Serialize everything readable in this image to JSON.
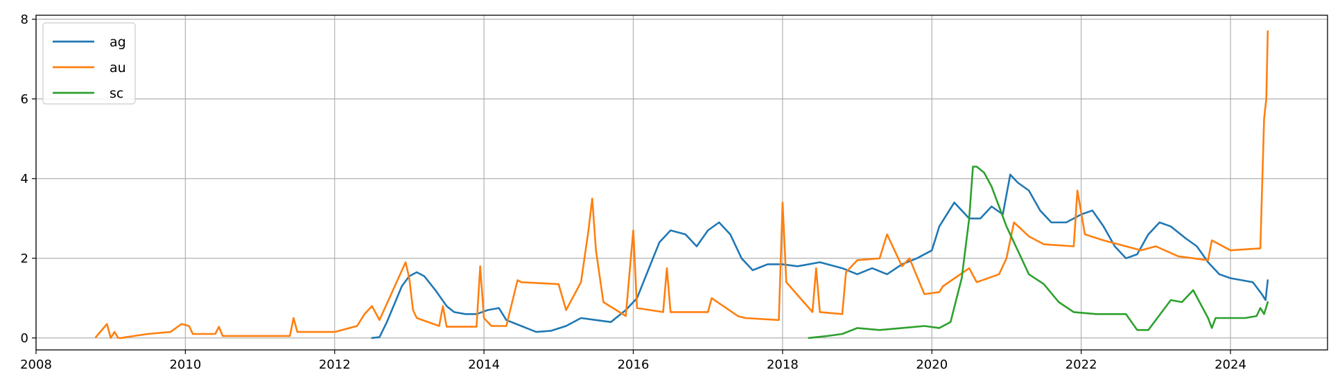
{
  "chart_data": {
    "type": "line",
    "title": "",
    "xlabel": "",
    "ylabel": "",
    "xlim": [
      2008.0,
      2025.3
    ],
    "ylim": [
      -0.3,
      8.1
    ],
    "x_ticks": [
      2008,
      2010,
      2012,
      2014,
      2016,
      2018,
      2020,
      2022,
      2024
    ],
    "x_tick_labels": [
      "2008",
      "2010",
      "2012",
      "2014",
      "2016",
      "2018",
      "2020",
      "2022",
      "2024"
    ],
    "y_ticks": [
      0,
      2,
      4,
      6,
      8
    ],
    "y_tick_labels": [
      "0",
      "2",
      "4",
      "6",
      "8"
    ],
    "grid": true,
    "legend_position": "top-left",
    "series": [
      {
        "name": "ag",
        "color": "#1f77b4",
        "x": [
          2012.5,
          2012.6,
          2012.7,
          2012.8,
          2012.9,
          2013.0,
          2013.1,
          2013.2,
          2013.35,
          2013.5,
          2013.6,
          2013.75,
          2013.9,
          2014.05,
          2014.2,
          2014.3,
          2014.5,
          2014.7,
          2014.9,
          2015.1,
          2015.3,
          2015.5,
          2015.7,
          2015.9,
          2016.05,
          2016.2,
          2016.35,
          2016.5,
          2016.7,
          2016.85,
          2017.0,
          2017.15,
          2017.3,
          2017.45,
          2017.6,
          2017.8,
          2018.0,
          2018.2,
          2018.5,
          2018.8,
          2019.0,
          2019.2,
          2019.4,
          2019.6,
          2019.8,
          2020.0,
          2020.1,
          2020.2,
          2020.3,
          2020.5,
          2020.65,
          2020.8,
          2020.95,
          2021.05,
          2021.15,
          2021.3,
          2021.45,
          2021.6,
          2021.8,
          2022.0,
          2022.15,
          2022.3,
          2022.45,
          2022.6,
          2022.75,
          2022.9,
          2023.05,
          2023.2,
          2023.4,
          2023.55,
          2023.7,
          2023.85,
          2024.0,
          2024.15,
          2024.3,
          2024.42,
          2024.47,
          2024.5
        ],
        "y": [
          0.0,
          0.02,
          0.4,
          0.85,
          1.3,
          1.55,
          1.65,
          1.55,
          1.2,
          0.8,
          0.65,
          0.6,
          0.6,
          0.7,
          0.75,
          0.45,
          0.3,
          0.15,
          0.18,
          0.3,
          0.5,
          0.45,
          0.4,
          0.7,
          1.0,
          1.7,
          2.4,
          2.7,
          2.6,
          2.3,
          2.7,
          2.9,
          2.6,
          2.0,
          1.7,
          1.85,
          1.85,
          1.8,
          1.9,
          1.75,
          1.6,
          1.75,
          1.6,
          1.85,
          2.0,
          2.2,
          2.8,
          3.1,
          3.4,
          3.0,
          3.0,
          3.3,
          3.1,
          4.1,
          3.9,
          3.7,
          3.2,
          2.9,
          2.9,
          3.1,
          3.2,
          2.8,
          2.3,
          2.0,
          2.1,
          2.6,
          2.9,
          2.8,
          2.5,
          2.3,
          1.9,
          1.6,
          1.5,
          1.45,
          1.4,
          1.1,
          0.95,
          1.45
        ]
      },
      {
        "name": "au",
        "color": "#ff7f0e",
        "x": [
          2008.8,
          2008.95,
          2009.0,
          2009.05,
          2009.1,
          2009.15,
          2009.2,
          2009.5,
          2009.8,
          2009.95,
          2010.05,
          2010.1,
          2010.4,
          2010.45,
          2010.5,
          2011.0,
          2011.4,
          2011.45,
          2011.5,
          2012.0,
          2012.3,
          2012.4,
          2012.5,
          2012.6,
          2012.95,
          2013.0,
          2013.05,
          2013.1,
          2013.4,
          2013.45,
          2013.5,
          2013.9,
          2013.95,
          2014.0,
          2014.1,
          2014.3,
          2014.45,
          2014.5,
          2015.0,
          2015.1,
          2015.3,
          2015.4,
          2015.45,
          2015.5,
          2015.6,
          2015.9,
          2016.0,
          2016.05,
          2016.4,
          2016.45,
          2016.5,
          2017.0,
          2017.05,
          2017.4,
          2017.5,
          2017.95,
          2018.0,
          2018.05,
          2018.4,
          2018.45,
          2018.5,
          2018.8,
          2018.85,
          2019.0,
          2019.3,
          2019.4,
          2019.6,
          2019.7,
          2019.9,
          2020.1,
          2020.15,
          2020.5,
          2020.6,
          2020.9,
          2021.0,
          2021.1,
          2021.3,
          2021.5,
          2021.9,
          2021.95,
          2022.05,
          2022.3,
          2022.8,
          2023.0,
          2023.3,
          2023.7,
          2023.75,
          2024.0,
          2024.4,
          2024.45,
          2024.48,
          2024.5
        ],
        "y": [
          0.02,
          0.35,
          0.0,
          0.15,
          0.0,
          0.0,
          0.02,
          0.1,
          0.15,
          0.35,
          0.3,
          0.1,
          0.1,
          0.28,
          0.05,
          0.05,
          0.05,
          0.5,
          0.15,
          0.15,
          0.3,
          0.6,
          0.8,
          0.45,
          1.9,
          1.5,
          0.7,
          0.5,
          0.3,
          0.8,
          0.28,
          0.28,
          1.8,
          0.5,
          0.3,
          0.3,
          1.45,
          1.4,
          1.35,
          0.7,
          1.4,
          2.7,
          3.5,
          2.2,
          0.9,
          0.55,
          2.7,
          0.75,
          0.65,
          1.75,
          0.65,
          0.65,
          1.0,
          0.55,
          0.5,
          0.45,
          3.4,
          1.4,
          0.65,
          1.75,
          0.65,
          0.6,
          1.65,
          1.95,
          2.0,
          2.6,
          1.8,
          2.0,
          1.1,
          1.15,
          1.3,
          1.75,
          1.4,
          1.6,
          2.0,
          2.9,
          2.55,
          2.35,
          2.3,
          3.7,
          2.6,
          2.45,
          2.2,
          2.3,
          2.05,
          1.95,
          2.45,
          2.2,
          2.25,
          5.5,
          6.0,
          7.7
        ]
      },
      {
        "name": "sc",
        "color": "#2ca02c",
        "x": [
          2018.35,
          2018.6,
          2018.8,
          2019.0,
          2019.3,
          2019.6,
          2019.9,
          2020.1,
          2020.25,
          2020.4,
          2020.5,
          2020.55,
          2020.6,
          2020.7,
          2020.8,
          2020.9,
          2021.0,
          2021.15,
          2021.3,
          2021.5,
          2021.7,
          2021.9,
          2022.2,
          2022.4,
          2022.6,
          2022.75,
          2022.9,
          2023.0,
          2023.2,
          2023.35,
          2023.5,
          2023.7,
          2023.75,
          2023.8,
          2024.0,
          2024.2,
          2024.35,
          2024.4,
          2024.45,
          2024.5
        ],
        "y": [
          0.0,
          0.05,
          0.1,
          0.25,
          0.2,
          0.25,
          0.3,
          0.25,
          0.4,
          1.5,
          3.0,
          4.3,
          4.3,
          4.15,
          3.8,
          3.3,
          2.8,
          2.2,
          1.6,
          1.35,
          0.9,
          0.65,
          0.6,
          0.6,
          0.6,
          0.2,
          0.2,
          0.45,
          0.95,
          0.9,
          1.2,
          0.5,
          0.25,
          0.5,
          0.5,
          0.5,
          0.55,
          0.75,
          0.6,
          0.9
        ]
      }
    ]
  }
}
